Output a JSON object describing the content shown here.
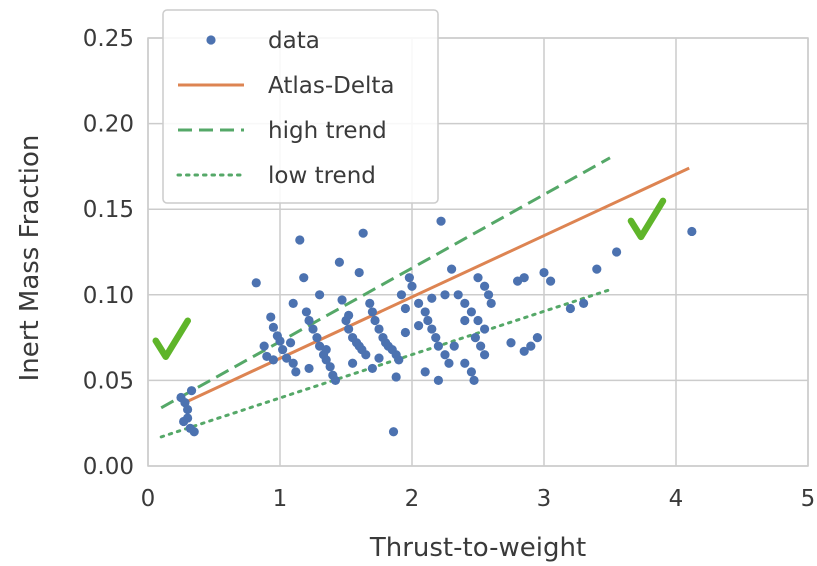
{
  "chart_data": {
    "type": "scatter",
    "xlabel": "Thrust-to-weight",
    "ylabel": "Inert Mass Fraction",
    "xlim": [
      0,
      5
    ],
    "ylim": [
      0,
      0.25
    ],
    "xticks": [
      "0",
      "1",
      "2",
      "3",
      "4",
      "5"
    ],
    "yticks": [
      "0.00",
      "0.05",
      "0.10",
      "0.15",
      "0.20",
      "0.25"
    ],
    "grid": true,
    "legend_position": "top-left",
    "series": [
      {
        "name": "data",
        "kind": "points",
        "color": "#4c72b0",
        "points": [
          [
            0.25,
            0.04
          ],
          [
            0.28,
            0.037
          ],
          [
            0.3,
            0.033
          ],
          [
            0.27,
            0.026
          ],
          [
            0.32,
            0.022
          ],
          [
            0.35,
            0.02
          ],
          [
            0.33,
            0.044
          ],
          [
            0.3,
            0.028
          ],
          [
            0.82,
            0.107
          ],
          [
            0.88,
            0.07
          ],
          [
            0.9,
            0.064
          ],
          [
            0.93,
            0.087
          ],
          [
            0.95,
            0.081
          ],
          [
            0.98,
            0.076
          ],
          [
            1.0,
            0.073
          ],
          [
            1.02,
            0.068
          ],
          [
            1.05,
            0.063
          ],
          [
            1.08,
            0.072
          ],
          [
            1.1,
            0.06
          ],
          [
            1.12,
            0.055
          ],
          [
            1.15,
            0.132
          ],
          [
            1.18,
            0.11
          ],
          [
            1.2,
            0.09
          ],
          [
            1.22,
            0.085
          ],
          [
            1.25,
            0.08
          ],
          [
            1.28,
            0.075
          ],
          [
            1.3,
            0.07
          ],
          [
            1.33,
            0.065
          ],
          [
            1.35,
            0.062
          ],
          [
            1.38,
            0.058
          ],
          [
            1.3,
            0.1
          ],
          [
            1.22,
            0.057
          ],
          [
            1.45,
            0.119
          ],
          [
            1.47,
            0.097
          ],
          [
            1.5,
            0.085
          ],
          [
            1.52,
            0.08
          ],
          [
            1.55,
            0.075
          ],
          [
            1.58,
            0.072
          ],
          [
            1.6,
            0.07
          ],
          [
            1.62,
            0.068
          ],
          [
            1.65,
            0.065
          ],
          [
            1.4,
            0.053
          ],
          [
            1.42,
            0.05
          ],
          [
            1.55,
            0.06
          ],
          [
            1.63,
            0.136
          ],
          [
            1.6,
            0.113
          ],
          [
            1.68,
            0.095
          ],
          [
            1.7,
            0.09
          ],
          [
            1.72,
            0.085
          ],
          [
            1.75,
            0.08
          ],
          [
            1.78,
            0.075
          ],
          [
            1.8,
            0.072
          ],
          [
            1.82,
            0.07
          ],
          [
            1.85,
            0.068
          ],
          [
            1.88,
            0.065
          ],
          [
            1.9,
            0.062
          ],
          [
            1.7,
            0.057
          ],
          [
            1.86,
            0.02
          ],
          [
            1.88,
            0.052
          ],
          [
            1.92,
            0.1
          ],
          [
            1.95,
            0.092
          ],
          [
            1.98,
            0.11
          ],
          [
            2.0,
            0.105
          ],
          [
            2.05,
            0.095
          ],
          [
            2.1,
            0.09
          ],
          [
            2.12,
            0.085
          ],
          [
            2.15,
            0.08
          ],
          [
            2.18,
            0.075
          ],
          [
            2.2,
            0.07
          ],
          [
            2.25,
            0.065
          ],
          [
            2.28,
            0.06
          ],
          [
            2.1,
            0.055
          ],
          [
            2.2,
            0.05
          ],
          [
            2.22,
            0.143
          ],
          [
            2.3,
            0.115
          ],
          [
            2.35,
            0.1
          ],
          [
            2.4,
            0.095
          ],
          [
            2.45,
            0.09
          ],
          [
            2.5,
            0.085
          ],
          [
            2.55,
            0.08
          ],
          [
            2.48,
            0.075
          ],
          [
            2.52,
            0.07
          ],
          [
            2.4,
            0.06
          ],
          [
            2.45,
            0.055
          ],
          [
            2.47,
            0.05
          ],
          [
            2.5,
            0.11
          ],
          [
            2.55,
            0.105
          ],
          [
            2.58,
            0.1
          ],
          [
            2.6,
            0.095
          ],
          [
            2.4,
            0.085
          ],
          [
            2.55,
            0.065
          ],
          [
            2.25,
            0.1
          ],
          [
            2.32,
            0.07
          ],
          [
            2.15,
            0.098
          ],
          [
            2.8,
            0.108
          ],
          [
            2.85,
            0.11
          ],
          [
            2.9,
            0.07
          ],
          [
            2.95,
            0.075
          ],
          [
            3.0,
            0.113
          ],
          [
            3.05,
            0.108
          ],
          [
            2.75,
            0.072
          ],
          [
            2.85,
            0.067
          ],
          [
            3.2,
            0.092
          ],
          [
            3.3,
            0.095
          ],
          [
            3.4,
            0.115
          ],
          [
            3.55,
            0.125
          ],
          [
            4.12,
            0.137
          ],
          [
            1.95,
            0.078
          ],
          [
            1.75,
            0.063
          ],
          [
            1.52,
            0.088
          ],
          [
            1.35,
            0.068
          ],
          [
            1.1,
            0.095
          ],
          [
            0.95,
            0.062
          ],
          [
            2.05,
            0.082
          ]
        ]
      },
      {
        "name": "Atlas-Delta",
        "kind": "line",
        "style": "solid",
        "color": "#dd8452",
        "x": [
          0.25,
          4.1
        ],
        "y": [
          0.036,
          0.174
        ]
      },
      {
        "name": "high trend",
        "kind": "line",
        "style": "dashed",
        "color": "#55a868",
        "x": [
          0.1,
          3.5
        ],
        "y": [
          0.034,
          0.18
        ]
      },
      {
        "name": "low trend",
        "kind": "line",
        "style": "dotted",
        "color": "#55a868",
        "x": [
          0.1,
          3.5
        ],
        "y": [
          0.017,
          0.103
        ]
      }
    ],
    "annotations": [
      {
        "type": "checkmark",
        "color": "#5fb52a",
        "x": 0.18,
        "y": 0.072
      },
      {
        "type": "checkmark",
        "color": "#5fb52a",
        "x": 3.78,
        "y": 0.142
      }
    ]
  }
}
